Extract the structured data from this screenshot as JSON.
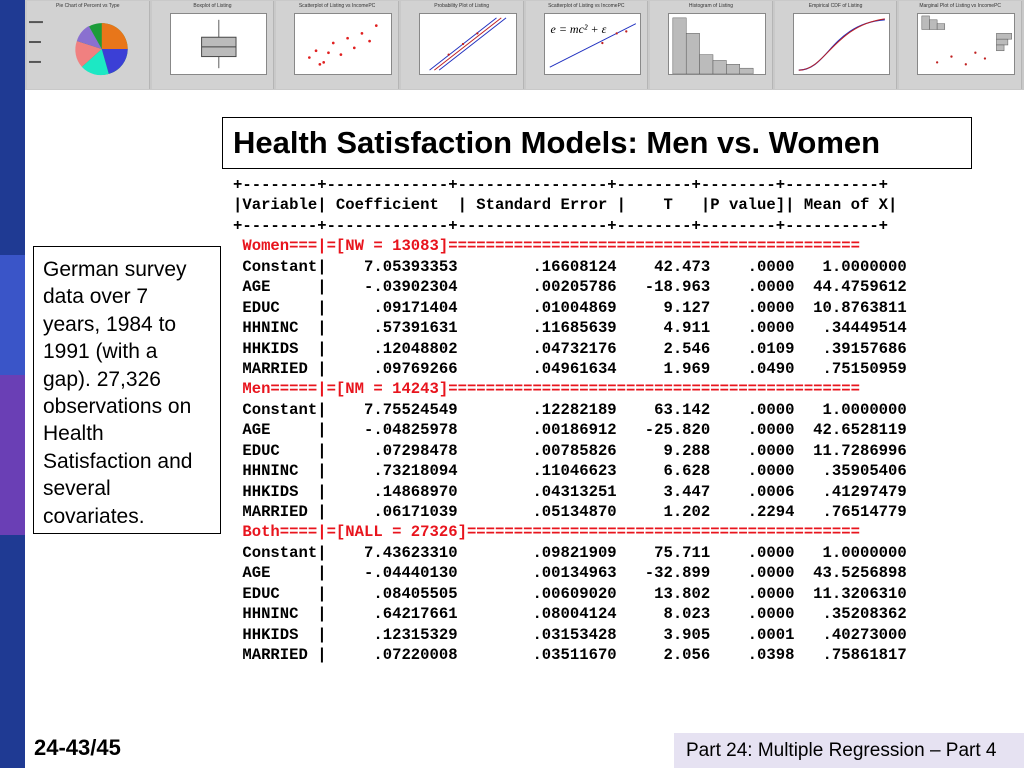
{
  "slide": {
    "title": "Health Satisfaction Models: Men vs. Women",
    "note_lines": [
      "German survey",
      "data over 7",
      "years, 1984 to",
      "1991 (with a",
      "gap). 27,326",
      "observations on",
      "Health",
      "Satisfaction and",
      "several",
      "covariates."
    ],
    "page_number": "24-43/45",
    "footer": "Part 24: Multiple Regression – Part 4"
  },
  "colors": {
    "section_header": "#e8141d",
    "side_bar": [
      "#1f3a93",
      "#3a55c8",
      "#6a3fb5",
      "#9a55c8",
      "#1f3a93"
    ],
    "footer_bg": "#e6e2f2"
  },
  "thumbnails": [
    {
      "title": "Pie Chart of Percent vs Type",
      "icon": "pie-chart-thumbnail"
    },
    {
      "title": "Boxplot of Listing",
      "icon": "boxplot-thumbnail"
    },
    {
      "title": "Scatterplot of Listing vs IncomePC",
      "icon": "scatterplot-thumbnail"
    },
    {
      "title": "Probability Plot of Listing",
      "icon": "probability-plot-thumbnail"
    },
    {
      "title": "Scatterplot of Listing vs IncomePC",
      "icon": "equation-thumbnail"
    },
    {
      "title": "Histogram of Listing",
      "icon": "histogram-thumbnail"
    },
    {
      "title": "Empirical CDF of Listing",
      "icon": "ecdf-thumbnail"
    },
    {
      "title": "Marginal Plot of Listing vs IncomePC",
      "icon": "marginal-plot-thumbnail"
    }
  ],
  "equation_text": "e = mc² + ε",
  "table": {
    "border": "+--------+-------------+----------------+--------+--------+----------+",
    "header": "|Variable| Coefficient  | Standard Error |    T   |P value]| Mean of X|",
    "sections": [
      {
        "label": "Women===|=[NW = 13083]============================================",
        "rows": [
          {
            "var": "Constant|",
            "coef": "7.05393353",
            "se": ".16608124",
            "t": "42.473",
            "p": ".0000",
            "mean": "1.0000000"
          },
          {
            "var": "AGE     |",
            "coef": "-.03902304",
            "se": ".00205786",
            "t": "-18.963",
            "p": ".0000",
            "mean": "44.4759612"
          },
          {
            "var": "EDUC    |",
            "coef": ".09171404",
            "se": ".01004869",
            "t": "9.127",
            "p": ".0000",
            "mean": "10.8763811"
          },
          {
            "var": "HHNINC  |",
            "coef": ".57391631",
            "se": ".11685639",
            "t": "4.911",
            "p": ".0000",
            "mean": ".34449514"
          },
          {
            "var": "HHKIDS  |",
            "coef": ".12048802",
            "se": ".04732176",
            "t": "2.546",
            "p": ".0109",
            "mean": ".39157686"
          },
          {
            "var": "MARRIED |",
            "coef": ".09769266",
            "se": ".04961634",
            "t": "1.969",
            "p": ".0490",
            "mean": ".75150959"
          }
        ]
      },
      {
        "label": "Men=====|=[NM = 14243]============================================",
        "rows": [
          {
            "var": "Constant|",
            "coef": "7.75524549",
            "se": ".12282189",
            "t": "63.142",
            "p": ".0000",
            "mean": "1.0000000"
          },
          {
            "var": "AGE     |",
            "coef": "-.04825978",
            "se": ".00186912",
            "t": "-25.820",
            "p": ".0000",
            "mean": "42.6528119"
          },
          {
            "var": "EDUC    |",
            "coef": ".07298478",
            "se": ".00785826",
            "t": "9.288",
            "p": ".0000",
            "mean": "11.7286996"
          },
          {
            "var": "HHNINC  |",
            "coef": ".73218094",
            "se": ".11046623",
            "t": "6.628",
            "p": ".0000",
            "mean": ".35905406"
          },
          {
            "var": "HHKIDS  |",
            "coef": ".14868970",
            "se": ".04313251",
            "t": "3.447",
            "p": ".0006",
            "mean": ".41297479"
          },
          {
            "var": "MARRIED |",
            "coef": ".06171039",
            "se": ".05134870",
            "t": "1.202",
            "p": ".2294",
            "mean": ".76514779"
          }
        ]
      },
      {
        "label": "Both====|=[NALL = 27326]==========================================",
        "rows": [
          {
            "var": "Constant|",
            "coef": "7.43623310",
            "se": ".09821909",
            "t": "75.711",
            "p": ".0000",
            "mean": "1.0000000"
          },
          {
            "var": "AGE     |",
            "coef": "-.04440130",
            "se": ".00134963",
            "t": "-32.899",
            "p": ".0000",
            "mean": "43.5256898"
          },
          {
            "var": "EDUC    |",
            "coef": ".08405505",
            "se": ".00609020",
            "t": "13.802",
            "p": ".0000",
            "mean": "11.3206310"
          },
          {
            "var": "HHNINC  |",
            "coef": ".64217661",
            "se": ".08004124",
            "t": "8.023",
            "p": ".0000",
            "mean": ".35208362"
          },
          {
            "var": "HHKIDS  |",
            "coef": ".12315329",
            "se": ".03153428",
            "t": "3.905",
            "p": ".0001",
            "mean": ".40273000"
          },
          {
            "var": "MARRIED |",
            "coef": ".07220008",
            "se": ".03511670",
            "t": "2.056",
            "p": ".0398",
            "mean": ".75861817"
          }
        ]
      }
    ]
  }
}
